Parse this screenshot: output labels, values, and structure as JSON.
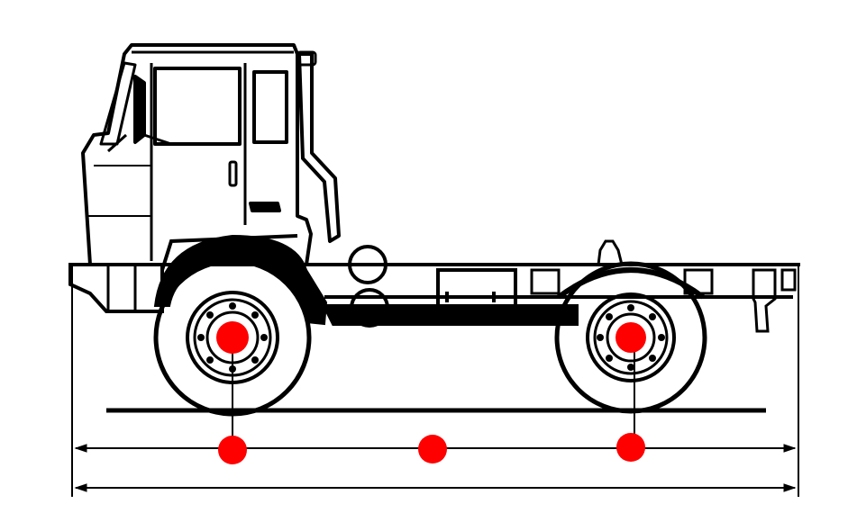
{
  "diagram": {
    "subject": "truck-tractor-side-view",
    "colors": {
      "ink": "#000000",
      "paper": "#ffffff",
      "marker": "#ff0000"
    },
    "markers": [
      {
        "id": "front-axle-hub",
        "icon": "red-dot"
      },
      {
        "id": "rear-axle-hub",
        "icon": "red-dot"
      },
      {
        "id": "front-axle-dimension-point",
        "icon": "red-dot"
      },
      {
        "id": "wheelbase-midpoint",
        "icon": "red-dot"
      },
      {
        "id": "rear-axle-dimension-point",
        "icon": "red-dot"
      }
    ],
    "dimensions": [
      "wheelbase",
      "overall-length"
    ]
  }
}
